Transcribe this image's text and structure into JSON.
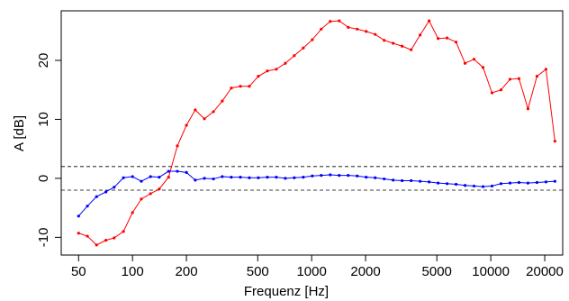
{
  "chart_data": {
    "type": "line",
    "xlabel": "Frequenz [Hz]",
    "ylabel": "A [dB]",
    "xscale": "log",
    "x": [
      50,
      56,
      63,
      71,
      79,
      89,
      100,
      112,
      126,
      141,
      159,
      178,
      200,
      224,
      252,
      283,
      317,
      356,
      400,
      449,
      504,
      566,
      635,
      713,
      800,
      898,
      1008,
      1131,
      1270,
      1425,
      1600,
      1796,
      2016,
      2263,
      2540,
      2851,
      3200,
      3592,
      4032,
      4525,
      5080,
      5702,
      6400,
      7184,
      8063,
      9051,
      10159,
      11404,
      12800,
      14368,
      16127,
      18102,
      20319,
      22807
    ],
    "series": [
      {
        "name": "red",
        "color": "#ff0000",
        "values": [
          -9.3,
          -9.8,
          -11.3,
          -10.5,
          -10.1,
          -9.0,
          -5.8,
          -3.5,
          -2.6,
          -1.8,
          0.2,
          5.5,
          9.0,
          11.6,
          10.1,
          11.3,
          13.1,
          15.3,
          15.6,
          15.6,
          17.3,
          18.2,
          18.5,
          19.5,
          20.8,
          22.1,
          23.5,
          25.3,
          26.6,
          26.7,
          25.6,
          25.3,
          24.9,
          24.4,
          23.4,
          22.9,
          22.4,
          21.8,
          24.3,
          26.7,
          23.7,
          23.8,
          23.1,
          19.5,
          20.2,
          18.8,
          14.5,
          15.0,
          16.8,
          16.9,
          11.8,
          17.3,
          18.5,
          6.3
        ]
      },
      {
        "name": "blue",
        "color": "#0000ff",
        "values": [
          -6.4,
          -4.7,
          -3.1,
          -2.3,
          -1.5,
          0.1,
          0.3,
          -0.5,
          0.3,
          0.2,
          1.2,
          1.2,
          1.0,
          -0.3,
          0.0,
          -0.1,
          0.3,
          0.2,
          0.2,
          0.1,
          0.1,
          0.2,
          0.2,
          0.0,
          0.1,
          0.2,
          0.4,
          0.5,
          0.6,
          0.5,
          0.5,
          0.4,
          0.2,
          0.1,
          -0.1,
          -0.3,
          -0.4,
          -0.4,
          -0.5,
          -0.6,
          -0.8,
          -0.9,
          -1.0,
          -1.2,
          -1.3,
          -1.4,
          -1.3,
          -0.9,
          -0.8,
          -0.7,
          -0.8,
          -0.7,
          -0.6,
          -0.5
        ]
      }
    ],
    "hlines": [
      2,
      -2
    ],
    "xlim": [
      40,
      25200
    ],
    "ylim": [
      -13,
      28.4
    ],
    "xticks": [
      50,
      100,
      200,
      500,
      1000,
      2000,
      5000,
      10000,
      20000
    ],
    "yticks": [
      -10,
      0,
      10,
      20
    ]
  }
}
